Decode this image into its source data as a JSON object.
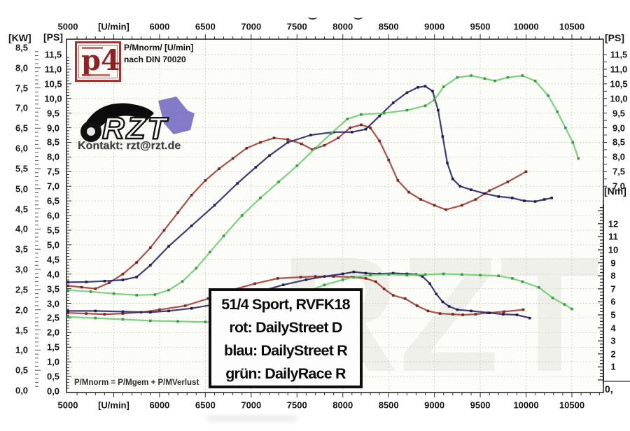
{
  "units": {
    "kw_left": "[KW]",
    "ps_left": "[PS]",
    "ps_right": "[PS]",
    "nm_right": "[Nm]",
    "nm_zero": "0,",
    "rpm": "[U/min]"
  },
  "annotations": {
    "norm_line1": "P/Mnorm/ [U/min]",
    "norm_line2": "nach DIN 70020",
    "formula": "P/Mnorm = P/Mgem + P/MVerlust",
    "kontakt": "Kontakt: rzt@rzt.de",
    "p4_logo": "p4",
    "rzt_logo": "RZT",
    "watermark": "RZT"
  },
  "legend": {
    "lines": [
      "51/4 Sport, RVFK18",
      "rot: DailyStreet D",
      "blau: DailyStreet R",
      "grün: DailyRace R"
    ]
  },
  "colors": {
    "red": "#a8403a",
    "red_marker": "#6e2220",
    "blue": "#2b2d6b",
    "blue_marker": "#191b4e",
    "green": "#6fcf73",
    "green_marker": "#35973f",
    "grid": "#c9c9c3",
    "axis": "#2a2a2a",
    "plot_bg": "#fcfcf8",
    "legend_border": "#0d0d0d",
    "p4_red": "#a93230"
  },
  "chart_data": {
    "type": "line",
    "title": "",
    "xlabel": "[U/min]",
    "x_axis": {
      "min": 5000,
      "max": 10840,
      "major_step": 500,
      "minor_step": 100,
      "tick_labels": [
        "5000",
        "[U/min]",
        "6000",
        "6500",
        "7000",
        "7500",
        "8000",
        "8500",
        "9000",
        "9500",
        "10000",
        "10500"
      ]
    },
    "y_left_ps": {
      "label": "[PS]",
      "min": 0.0,
      "max": 11.5,
      "step": 0.5
    },
    "y_left_kw": {
      "label": "[KW]",
      "min": 0.0,
      "max": 8.5,
      "step": 0.5
    },
    "y_right_ps": {
      "label": "[PS]",
      "min": 7.0,
      "max": 11.5,
      "step": 0.5
    },
    "y_right_nm": {
      "label": "[Nm]",
      "min": 0,
      "max": 13,
      "label_min": 1,
      "label_max": 12,
      "step": 1
    },
    "grid": true,
    "legend_position": "center-bottom",
    "series": [
      {
        "name": "rot: DailyStreet D — Leistung",
        "axis": "ps",
        "color_key": "red",
        "points": [
          [
            5000,
            3.6
          ],
          [
            5150,
            3.55
          ],
          [
            5300,
            3.5
          ],
          [
            5450,
            3.7
          ],
          [
            5600,
            4.0
          ],
          [
            5750,
            4.4
          ],
          [
            5900,
            4.9
          ],
          [
            6050,
            5.5
          ],
          [
            6200,
            6.1
          ],
          [
            6350,
            6.7
          ],
          [
            6500,
            7.2
          ],
          [
            6650,
            7.6
          ],
          [
            6800,
            7.95
          ],
          [
            6950,
            8.3
          ],
          [
            7100,
            8.5
          ],
          [
            7250,
            8.65
          ],
          [
            7400,
            8.6
          ],
          [
            7550,
            8.45
          ],
          [
            7670,
            8.25
          ],
          [
            7800,
            8.4
          ],
          [
            7950,
            8.65
          ],
          [
            8080,
            9.0
          ],
          [
            8200,
            9.1
          ],
          [
            8300,
            9.0
          ],
          [
            8400,
            8.55
          ],
          [
            8500,
            7.9
          ],
          [
            8600,
            7.2
          ],
          [
            8720,
            6.8
          ],
          [
            8850,
            6.55
          ],
          [
            9000,
            6.35
          ],
          [
            9125,
            6.2
          ],
          [
            9300,
            6.35
          ],
          [
            9450,
            6.55
          ],
          [
            9600,
            6.85
          ],
          [
            9800,
            7.15
          ],
          [
            10000,
            7.5
          ]
        ]
      },
      {
        "name": "blau: DailyStreet R — Leistung",
        "axis": "ps",
        "color_key": "blue",
        "points": [
          [
            5000,
            3.72
          ],
          [
            5200,
            3.73
          ],
          [
            5400,
            3.76
          ],
          [
            5600,
            3.8
          ],
          [
            5750,
            3.9
          ],
          [
            5900,
            4.3
          ],
          [
            6100,
            4.95
          ],
          [
            6350,
            5.65
          ],
          [
            6600,
            6.35
          ],
          [
            6850,
            7.1
          ],
          [
            7050,
            7.65
          ],
          [
            7200,
            8.05
          ],
          [
            7400,
            8.5
          ],
          [
            7650,
            8.75
          ],
          [
            7900,
            8.85
          ],
          [
            8100,
            8.85
          ],
          [
            8250,
            8.95
          ],
          [
            8400,
            9.4
          ],
          [
            8550,
            9.85
          ],
          [
            8700,
            10.2
          ],
          [
            8820,
            10.38
          ],
          [
            8900,
            10.42
          ],
          [
            8980,
            10.25
          ],
          [
            9040,
            9.6
          ],
          [
            9090,
            8.7
          ],
          [
            9140,
            7.8
          ],
          [
            9200,
            7.25
          ],
          [
            9280,
            7.0
          ],
          [
            9400,
            6.88
          ],
          [
            9550,
            6.75
          ],
          [
            9700,
            6.65
          ],
          [
            9850,
            6.6
          ],
          [
            9980,
            6.5
          ],
          [
            10100,
            6.48
          ],
          [
            10200,
            6.55
          ],
          [
            10280,
            6.6
          ]
        ]
      },
      {
        "name": "grün: DailyRace R — Leistung",
        "axis": "ps",
        "color_key": "green",
        "points": [
          [
            5000,
            3.45
          ],
          [
            5250,
            3.4
          ],
          [
            5500,
            3.33
          ],
          [
            5750,
            3.28
          ],
          [
            5950,
            3.3
          ],
          [
            6100,
            3.45
          ],
          [
            6250,
            3.75
          ],
          [
            6400,
            4.2
          ],
          [
            6550,
            4.75
          ],
          [
            6700,
            5.3
          ],
          [
            6900,
            6.0
          ],
          [
            7100,
            6.6
          ],
          [
            7300,
            7.15
          ],
          [
            7500,
            7.7
          ],
          [
            7700,
            8.3
          ],
          [
            7870,
            8.8
          ],
          [
            8050,
            9.3
          ],
          [
            8200,
            9.45
          ],
          [
            8450,
            9.5
          ],
          [
            8700,
            9.6
          ],
          [
            8900,
            9.75
          ],
          [
            9000,
            9.95
          ],
          [
            9100,
            10.4
          ],
          [
            9250,
            10.72
          ],
          [
            9400,
            10.78
          ],
          [
            9550,
            10.68
          ],
          [
            9660,
            10.6
          ],
          [
            9800,
            10.72
          ],
          [
            9960,
            10.78
          ],
          [
            10100,
            10.6
          ],
          [
            10240,
            10.1
          ],
          [
            10340,
            9.55
          ],
          [
            10430,
            9.0
          ],
          [
            10510,
            8.5
          ],
          [
            10570,
            7.95
          ]
        ]
      },
      {
        "name": "rot: DailyStreet D — Drehmoment",
        "axis": "nm",
        "color_key": "red",
        "points": [
          [
            5000,
            5.15
          ],
          [
            5200,
            5.1
          ],
          [
            5400,
            5.05
          ],
          [
            5600,
            5.1
          ],
          [
            5800,
            5.2
          ],
          [
            6000,
            5.4
          ],
          [
            6280,
            5.7
          ],
          [
            6530,
            6.25
          ],
          [
            6780,
            6.9
          ],
          [
            7040,
            7.4
          ],
          [
            7290,
            7.8
          ],
          [
            7540,
            7.9
          ],
          [
            7700,
            7.95
          ],
          [
            7900,
            7.95
          ],
          [
            8100,
            7.9
          ],
          [
            8250,
            7.8
          ],
          [
            8360,
            7.55
          ],
          [
            8450,
            7.0
          ],
          [
            8550,
            6.5
          ],
          [
            8680,
            6.25
          ],
          [
            8810,
            5.7
          ],
          [
            8930,
            5.3
          ],
          [
            9060,
            5.1
          ],
          [
            9200,
            5.05
          ],
          [
            9310,
            5.0
          ],
          [
            9450,
            5.05
          ],
          [
            9580,
            5.15
          ],
          [
            9760,
            5.25
          ],
          [
            9970,
            5.4
          ]
        ]
      },
      {
        "name": "blau: DailyStreet R — Drehmoment",
        "axis": "nm",
        "color_key": "blue",
        "points": [
          [
            5000,
            5.3
          ],
          [
            5300,
            5.3
          ],
          [
            5600,
            5.25
          ],
          [
            5900,
            5.2
          ],
          [
            6100,
            5.3
          ],
          [
            6350,
            5.5
          ],
          [
            6600,
            5.8
          ],
          [
            6850,
            6.2
          ],
          [
            7100,
            6.8
          ],
          [
            7350,
            7.3
          ],
          [
            7600,
            7.7
          ],
          [
            7800,
            7.95
          ],
          [
            8000,
            8.15
          ],
          [
            8120,
            8.3
          ],
          [
            8250,
            8.2
          ],
          [
            8400,
            8.15
          ],
          [
            8550,
            8.2
          ],
          [
            8700,
            8.15
          ],
          [
            8800,
            8.1
          ],
          [
            8870,
            7.95
          ],
          [
            8950,
            7.4
          ],
          [
            9020,
            6.6
          ],
          [
            9090,
            6.0
          ],
          [
            9160,
            5.65
          ],
          [
            9250,
            5.4
          ],
          [
            9400,
            5.3
          ],
          [
            9600,
            5.15
          ],
          [
            9750,
            5.05
          ],
          [
            9900,
            5.0
          ],
          [
            10040,
            4.75
          ]
        ]
      },
      {
        "name": "grün: DailyRace R — Drehmoment",
        "axis": "nm",
        "color_key": "green",
        "points": [
          [
            5000,
            4.85
          ],
          [
            5300,
            4.75
          ],
          [
            5600,
            4.65
          ],
          [
            5900,
            4.55
          ],
          [
            6200,
            4.5
          ],
          [
            6500,
            4.45
          ],
          [
            6700,
            4.4
          ],
          [
            6900,
            4.6
          ],
          [
            7040,
            5.0
          ],
          [
            7290,
            5.7
          ],
          [
            7540,
            6.6
          ],
          [
            7800,
            7.3
          ],
          [
            8000,
            7.7
          ],
          [
            8120,
            7.9
          ],
          [
            8300,
            8.05
          ],
          [
            8500,
            8.1
          ],
          [
            8700,
            8.05
          ],
          [
            8900,
            8.1
          ],
          [
            9100,
            8.15
          ],
          [
            9300,
            8.1
          ],
          [
            9500,
            8.05
          ],
          [
            9700,
            8.0
          ],
          [
            9850,
            7.8
          ],
          [
            9960,
            7.55
          ],
          [
            10140,
            7.1
          ],
          [
            10290,
            6.3
          ],
          [
            10420,
            5.8
          ],
          [
            10500,
            5.45
          ]
        ]
      }
    ]
  }
}
